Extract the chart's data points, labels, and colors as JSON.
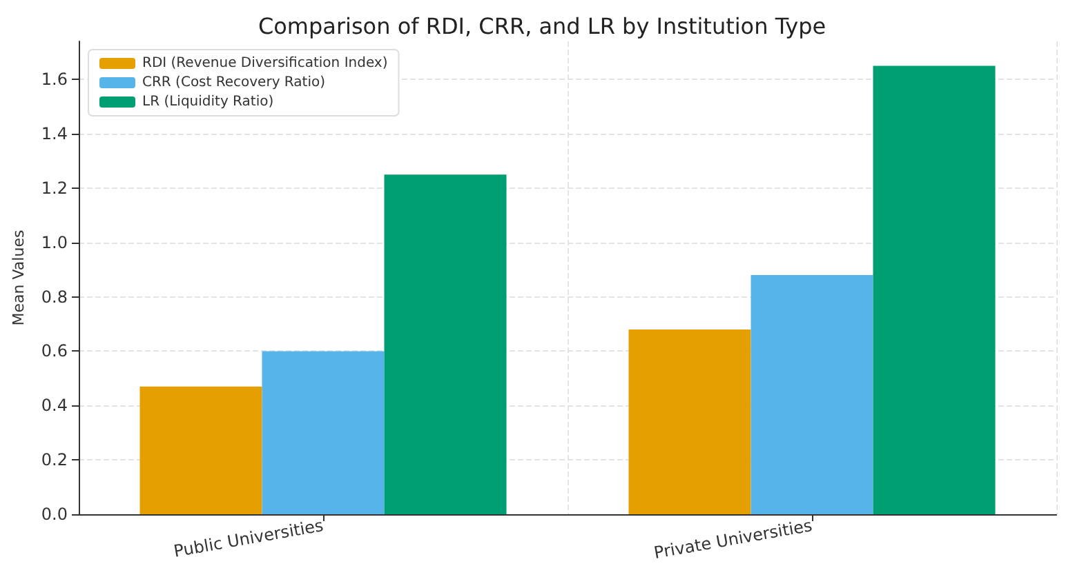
{
  "chart_data": {
    "type": "bar",
    "title": "Comparison of RDI, CRR, and LR by Institution Type",
    "ylabel": "Mean Values",
    "categories": [
      "Public Universities",
      "Private Universities"
    ],
    "series": [
      {
        "name": "RDI (Revenue Diversification Index)",
        "color": "#e69f00",
        "values": [
          0.47,
          0.68
        ]
      },
      {
        "name": "CRR (Cost Recovery Ratio)",
        "color": "#56b4e9",
        "values": [
          0.6,
          0.88
        ]
      },
      {
        "name": "LR (Liquidity Ratio)",
        "color": "#009e73",
        "values": [
          1.25,
          1.65
        ]
      }
    ],
    "ylim": [
      0,
      1.74
    ],
    "yticks": [
      {
        "value": 0,
        "label": "0.0"
      },
      0.2,
      0.4,
      0.6,
      0.8,
      {
        "value": 1,
        "label": "1.0"
      },
      1.2,
      1.4,
      1.6
    ],
    "grid": true,
    "legend": "top left"
  }
}
